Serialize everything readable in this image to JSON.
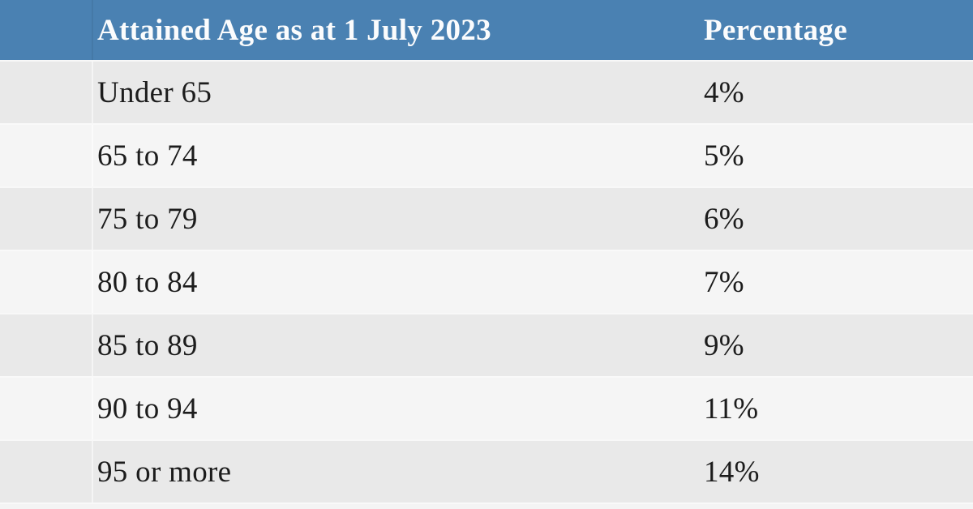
{
  "table": {
    "header": {
      "age_label": "Attained Age as at 1 July 2023",
      "pct_label": "Percentage"
    },
    "rows": [
      {
        "age": "Under 65",
        "pct": "4%"
      },
      {
        "age": "65 to 74",
        "pct": "5%"
      },
      {
        "age": "75 to 79",
        "pct": "6%"
      },
      {
        "age": "80 to 84",
        "pct": "7%"
      },
      {
        "age": "85 to 89",
        "pct": "9%"
      },
      {
        "age": "90 to 94",
        "pct": "11%"
      },
      {
        "age": "95 or more",
        "pct": "14%"
      }
    ]
  },
  "colors": {
    "header_bg": "#4a81b2",
    "header_text": "#fbfcfd",
    "row_odd_bg": "#e9e9e9",
    "row_even_bg": "#f5f5f5",
    "body_text": "#1c1c1c",
    "row_separator": "#fafafa"
  },
  "chart_data": {
    "type": "table",
    "title": "",
    "columns": [
      "Attained Age as at 1 July 2023",
      "Percentage"
    ],
    "categories": [
      "Under 65",
      "65 to 74",
      "75 to 79",
      "80 to 84",
      "85 to 89",
      "90 to 94",
      "95 or more"
    ],
    "values": [
      4,
      5,
      6,
      7,
      9,
      11,
      14
    ],
    "value_unit": "%",
    "legend": "none",
    "grid": "off"
  }
}
